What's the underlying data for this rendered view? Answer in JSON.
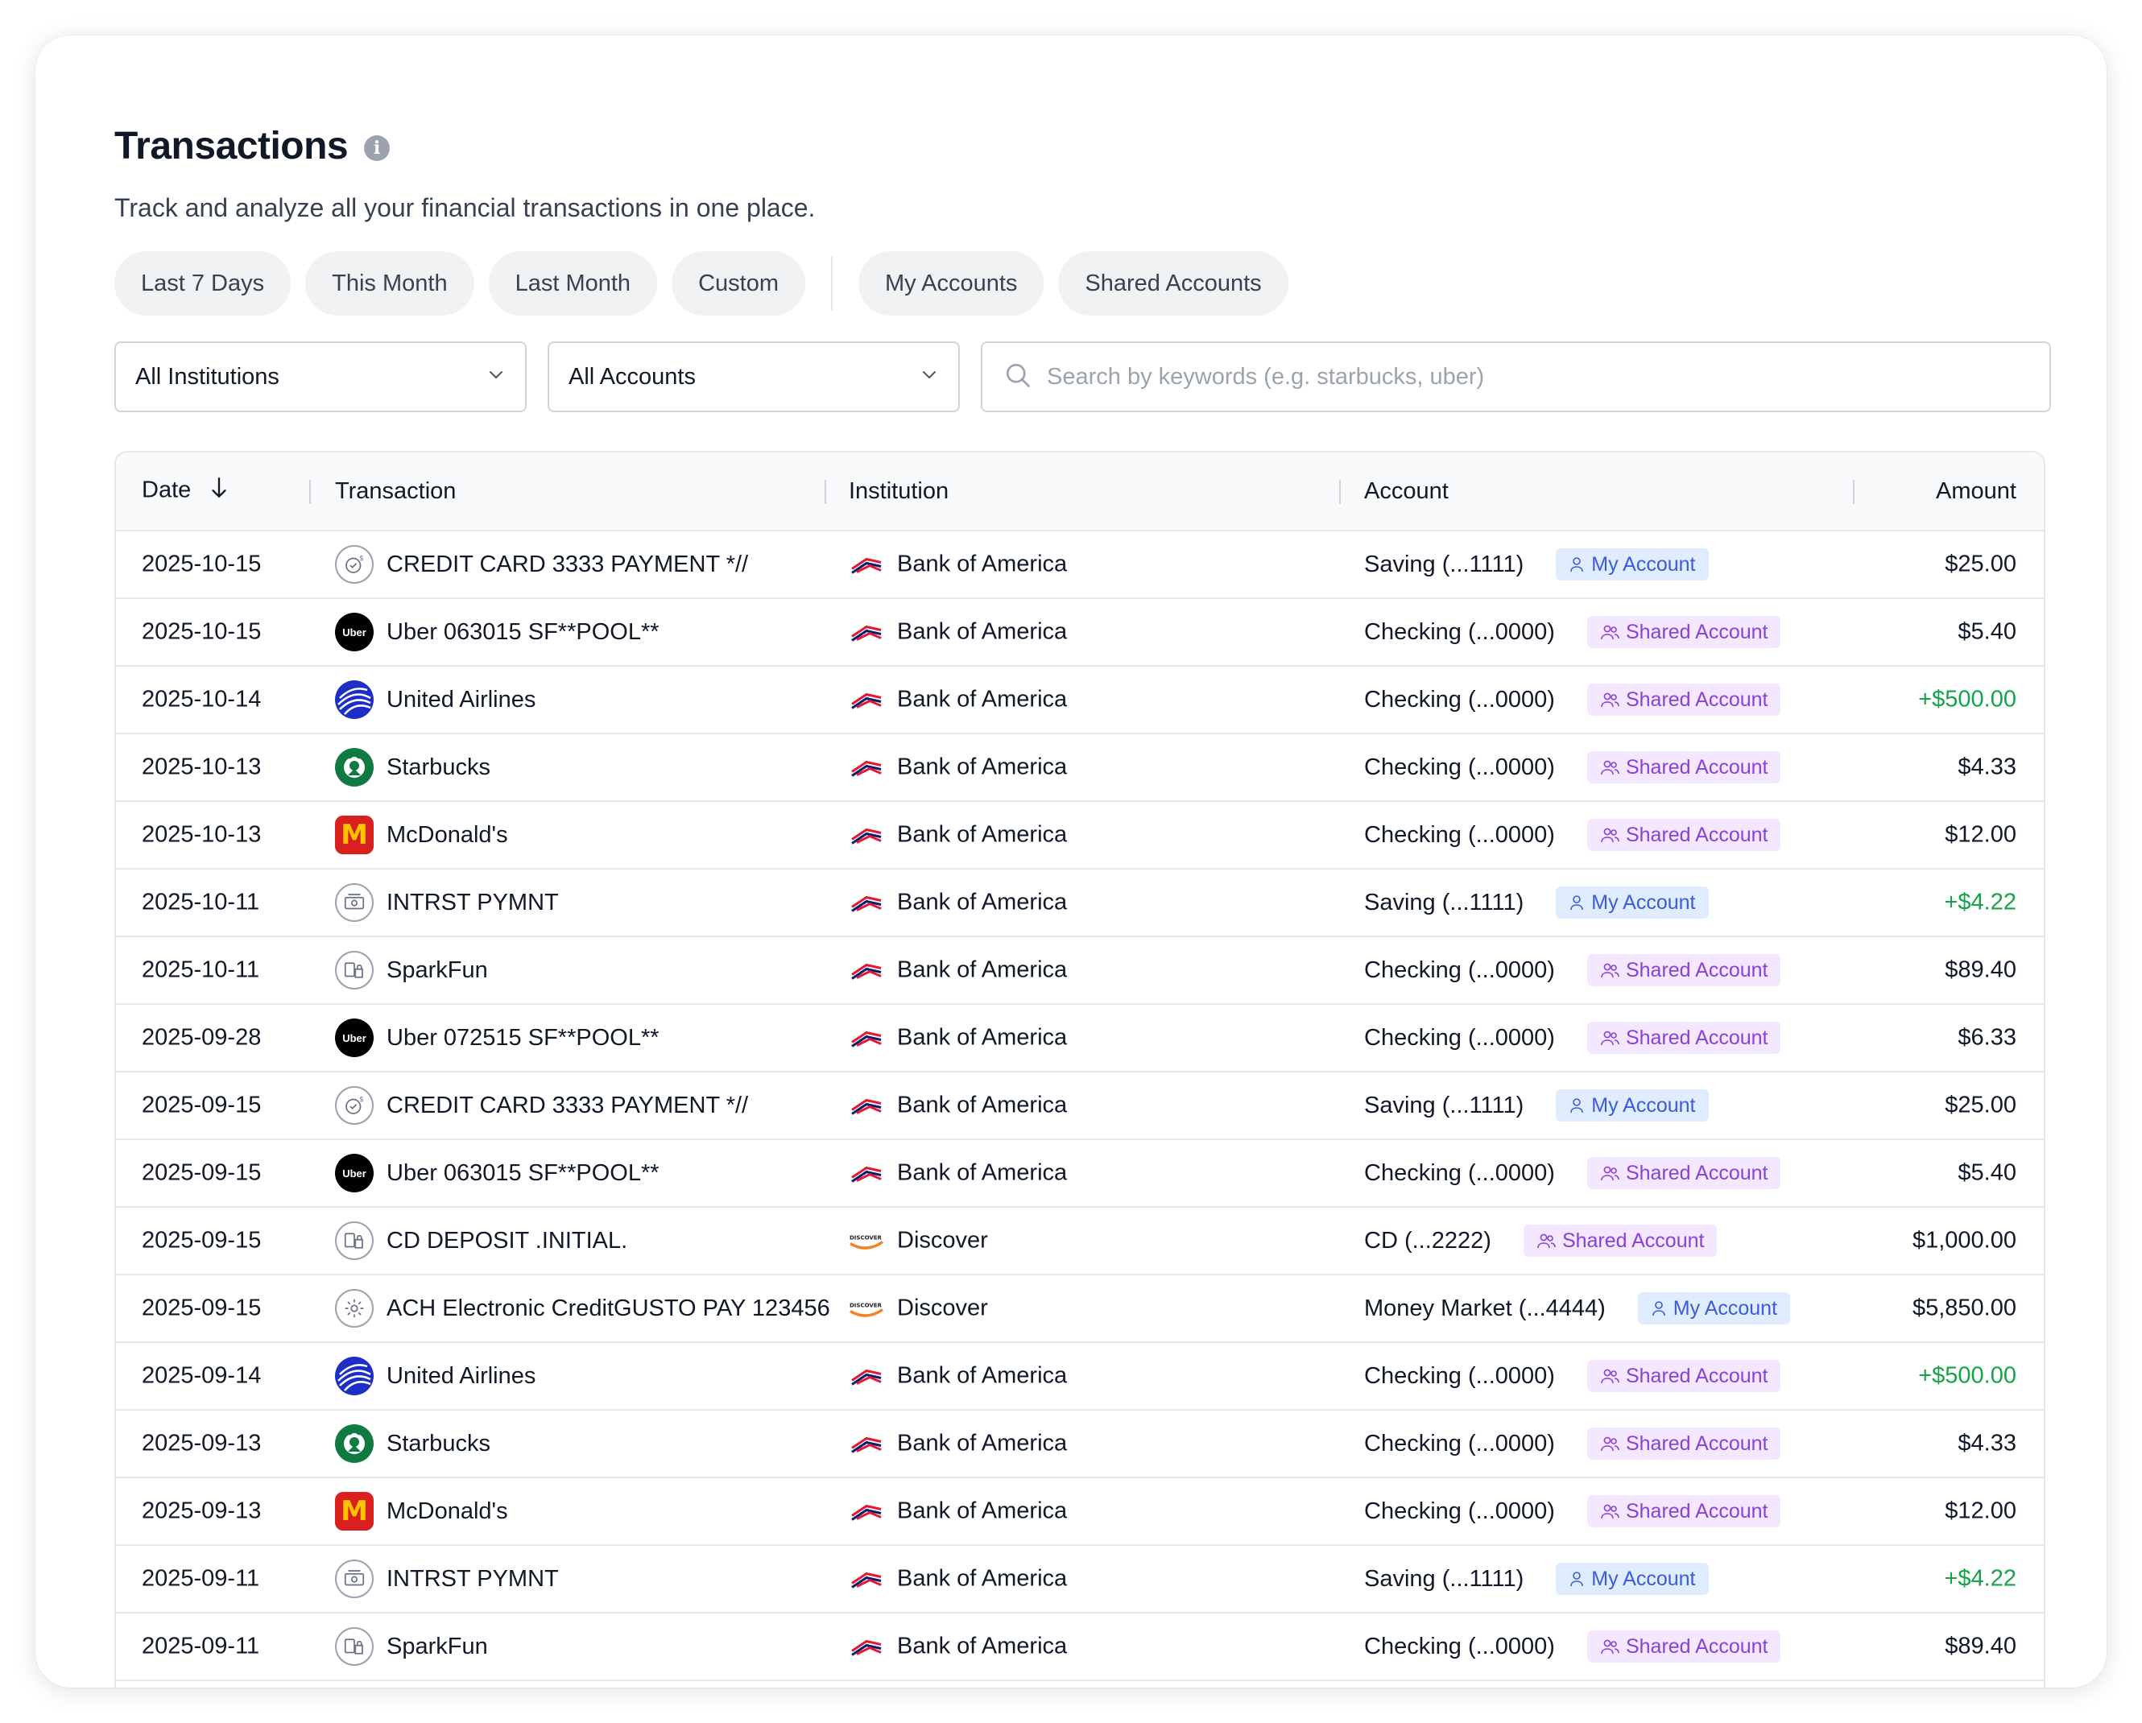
{
  "header": {
    "title": "Transactions",
    "subtitle": "Track and analyze all your financial transactions in one place."
  },
  "filters": {
    "date": [
      "Last 7 Days",
      "This Month",
      "Last Month",
      "Custom"
    ],
    "ownership": [
      "My Accounts",
      "Shared Accounts"
    ]
  },
  "controls": {
    "institution_select": "All Institutions",
    "account_select": "All Accounts",
    "search_placeholder": "Search by keywords (e.g. starbucks, uber)"
  },
  "table": {
    "headers": {
      "date": "Date",
      "transaction": "Transaction",
      "institution": "Institution",
      "account": "Account",
      "amount": "Amount"
    },
    "rows": [
      {
        "date": "2025-10-15",
        "icon": "credit-card-payment-icon",
        "transaction": "CREDIT CARD 3333 PAYMENT *//",
        "institution": "Bank of America",
        "inst_icon": "bank-of-america",
        "account": "Saving (...1111)",
        "badge": "My Account",
        "badge_type": "my",
        "amount": "$25.00",
        "positive": false
      },
      {
        "date": "2025-10-15",
        "icon": "uber-icon",
        "transaction": "Uber 063015 SF**POOL**",
        "institution": "Bank of America",
        "inst_icon": "bank-of-america",
        "account": "Checking (...0000)",
        "badge": "Shared Account",
        "badge_type": "shared",
        "amount": "$5.40",
        "positive": false
      },
      {
        "date": "2025-10-14",
        "icon": "united-airlines-icon",
        "transaction": "United Airlines",
        "institution": "Bank of America",
        "inst_icon": "bank-of-america",
        "account": "Checking (...0000)",
        "badge": "Shared Account",
        "badge_type": "shared",
        "amount": "+$500.00",
        "positive": true
      },
      {
        "date": "2025-10-13",
        "icon": "starbucks-icon",
        "transaction": "Starbucks",
        "institution": "Bank of America",
        "inst_icon": "bank-of-america",
        "account": "Checking (...0000)",
        "badge": "Shared Account",
        "badge_type": "shared",
        "amount": "$4.33",
        "positive": false
      },
      {
        "date": "2025-10-13",
        "icon": "mcdonalds-icon",
        "transaction": "McDonald's",
        "institution": "Bank of America",
        "inst_icon": "bank-of-america",
        "account": "Checking (...0000)",
        "badge": "Shared Account",
        "badge_type": "shared",
        "amount": "$12.00",
        "positive": false
      },
      {
        "date": "2025-10-11",
        "icon": "interest-payment-icon",
        "transaction": "INTRST PYMNT",
        "institution": "Bank of America",
        "inst_icon": "bank-of-america",
        "account": "Saving (...1111)",
        "badge": "My Account",
        "badge_type": "my",
        "amount": "+$4.22",
        "positive": true
      },
      {
        "date": "2025-10-11",
        "icon": "shopping-icon",
        "transaction": "SparkFun",
        "institution": "Bank of America",
        "inst_icon": "bank-of-america",
        "account": "Checking (...0000)",
        "badge": "Shared Account",
        "badge_type": "shared",
        "amount": "$89.40",
        "positive": false
      },
      {
        "date": "2025-09-28",
        "icon": "uber-icon",
        "transaction": "Uber 072515 SF**POOL**",
        "institution": "Bank of America",
        "inst_icon": "bank-of-america",
        "account": "Checking (...0000)",
        "badge": "Shared Account",
        "badge_type": "shared",
        "amount": "$6.33",
        "positive": false
      },
      {
        "date": "2025-09-15",
        "icon": "credit-card-payment-icon",
        "transaction": "CREDIT CARD 3333 PAYMENT *//",
        "institution": "Bank of America",
        "inst_icon": "bank-of-america",
        "account": "Saving (...1111)",
        "badge": "My Account",
        "badge_type": "my",
        "amount": "$25.00",
        "positive": false
      },
      {
        "date": "2025-09-15",
        "icon": "uber-icon",
        "transaction": "Uber 063015 SF**POOL**",
        "institution": "Bank of America",
        "inst_icon": "bank-of-america",
        "account": "Checking (...0000)",
        "badge": "Shared Account",
        "badge_type": "shared",
        "amount": "$5.40",
        "positive": false
      },
      {
        "date": "2025-09-15",
        "icon": "shopping-icon",
        "transaction": "CD DEPOSIT .INITIAL.",
        "institution": "Discover",
        "inst_icon": "discover",
        "account": "CD (...2222)",
        "badge": "Shared Account",
        "badge_type": "shared",
        "amount": "$1,000.00",
        "positive": false
      },
      {
        "date": "2025-09-15",
        "icon": "settings-icon",
        "transaction": "ACH Electronic CreditGUSTO PAY 123456",
        "institution": "Discover",
        "inst_icon": "discover",
        "account": "Money Market (...4444)",
        "badge": "My Account",
        "badge_type": "my",
        "amount": "$5,850.00",
        "positive": false
      },
      {
        "date": "2025-09-14",
        "icon": "united-airlines-icon",
        "transaction": "United Airlines",
        "institution": "Bank of America",
        "inst_icon": "bank-of-america",
        "account": "Checking (...0000)",
        "badge": "Shared Account",
        "badge_type": "shared",
        "amount": "+$500.00",
        "positive": true
      },
      {
        "date": "2025-09-13",
        "icon": "starbucks-icon",
        "transaction": "Starbucks",
        "institution": "Bank of America",
        "inst_icon": "bank-of-america",
        "account": "Checking (...0000)",
        "badge": "Shared Account",
        "badge_type": "shared",
        "amount": "$4.33",
        "positive": false
      },
      {
        "date": "2025-09-13",
        "icon": "mcdonalds-icon",
        "transaction": "McDonald's",
        "institution": "Bank of America",
        "inst_icon": "bank-of-america",
        "account": "Checking (...0000)",
        "badge": "Shared Account",
        "badge_type": "shared",
        "amount": "$12.00",
        "positive": false
      },
      {
        "date": "2025-09-11",
        "icon": "interest-payment-icon",
        "transaction": "INTRST PYMNT",
        "institution": "Bank of America",
        "inst_icon": "bank-of-america",
        "account": "Saving (...1111)",
        "badge": "My Account",
        "badge_type": "my",
        "amount": "+$4.22",
        "positive": true
      },
      {
        "date": "2025-09-11",
        "icon": "shopping-icon",
        "transaction": "SparkFun",
        "institution": "Bank of America",
        "inst_icon": "bank-of-america",
        "account": "Checking (...0000)",
        "badge": "Shared Account",
        "badge_type": "shared",
        "amount": "$89.40",
        "positive": false
      }
    ]
  },
  "colors": {
    "positive_amount": "#16a34a",
    "my_badge_bg": "#e0ecff",
    "my_badge_text": "#3b5bdb",
    "shared_badge_bg": "#f3e8ff",
    "shared_badge_text": "#8b3fd9"
  }
}
